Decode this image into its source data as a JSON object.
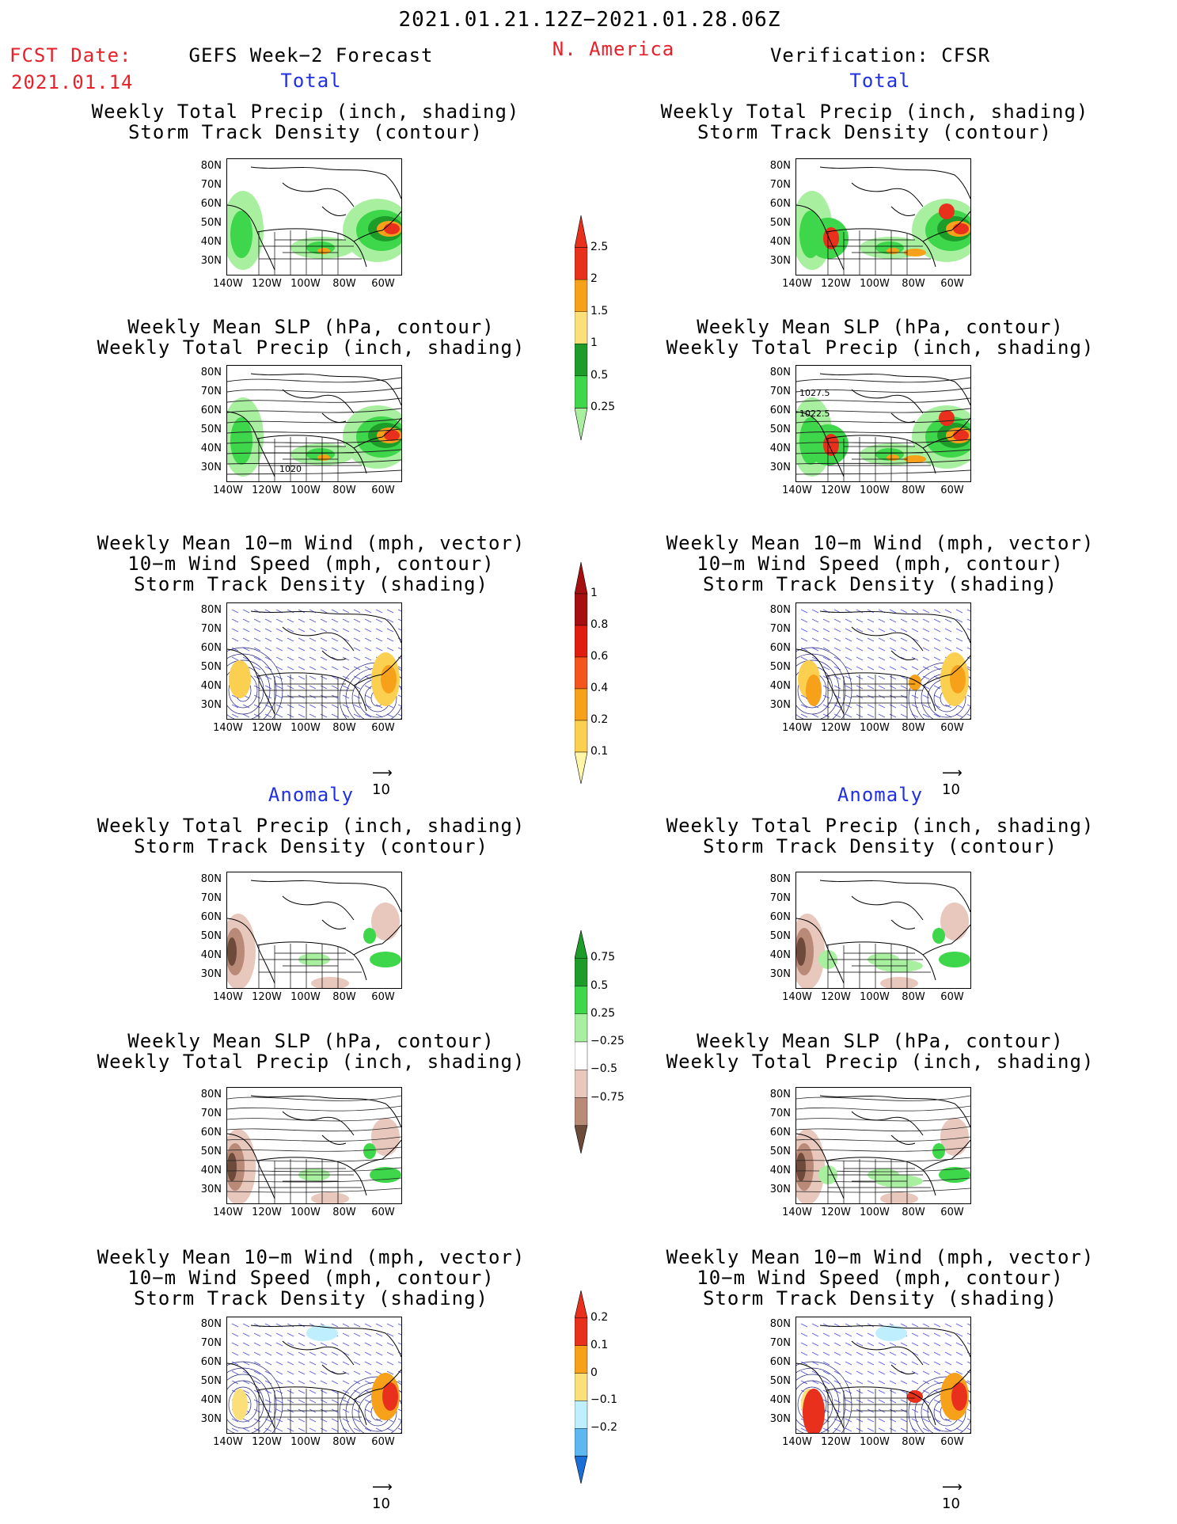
{
  "header": {
    "period": "2021.01.21.12Z−2021.01.28.06Z",
    "region": "N. America",
    "fcst_label": "FCST Date:",
    "fcst_date": "2021.01.14",
    "left_title": "GEFS Week−2 Forecast",
    "right_title": "Verification: CFSR"
  },
  "sections": {
    "total": "Total",
    "anomaly": "Anomaly"
  },
  "panel_titles": {
    "precip_storm": [
      "Weekly Total Precip (inch, shading)",
      "Storm Track Density (contour)"
    ],
    "slp_precip": [
      "Weekly Mean SLP (hPa, contour)",
      "Weekly Total Precip (inch, shading)"
    ],
    "wind_storm": [
      "Weekly Mean 10−m Wind (mph, vector)",
      "10−m Wind Speed (mph, contour)",
      "Storm Track Density (shading)"
    ]
  },
  "axes": {
    "lat_ticks": [
      "80N",
      "70N",
      "60N",
      "50N",
      "40N",
      "30N"
    ],
    "lon_ticks": [
      "140W",
      "120W",
      "100W",
      "80W",
      "60W"
    ]
  },
  "contour_labels": {
    "gefs_slp_total": "1020",
    "cfsr_slp_total_a": "1027.5",
    "cfsr_slp_total_b": "1022.5"
  },
  "vector_ref": "10",
  "colorbars": {
    "precip_total": {
      "labels": [
        "2.5",
        "2",
        "1.5",
        "1",
        "0.5",
        "0.25"
      ],
      "colors": [
        "#e8301c",
        "#f7a11a",
        "#fbe07a",
        "#1e9c2a",
        "#3ed64a",
        "#a8f0a0"
      ]
    },
    "storm_total": {
      "labels": [
        "1",
        "0.8",
        "0.6",
        "0.4",
        "0.2",
        "0.1"
      ],
      "colors": [
        "#a50f0f",
        "#e01e10",
        "#f2561c",
        "#f7a11a",
        "#fbd050",
        "#fff6a8"
      ]
    },
    "precip_anom": {
      "labels": [
        "0.75",
        "0.5",
        "0.25",
        "−0.25",
        "−0.5",
        "−0.75"
      ],
      "colors": [
        "#1e9c2a",
        "#3ed64a",
        "#a8f0a0",
        "#ffffff",
        "#e8c7bc",
        "#b98a78",
        "#6e4a3a"
      ]
    },
    "storm_anom": {
      "labels": [
        "0.2",
        "0.1",
        "0",
        "−0.1",
        "−0.2"
      ],
      "colors": [
        "#e8301c",
        "#f7a11a",
        "#fbe07a",
        "#bfefff",
        "#5eb8f0",
        "#1a6ed8"
      ]
    }
  },
  "colors": {
    "title_red": "#e8202a",
    "title_blue": "#2030e0"
  }
}
